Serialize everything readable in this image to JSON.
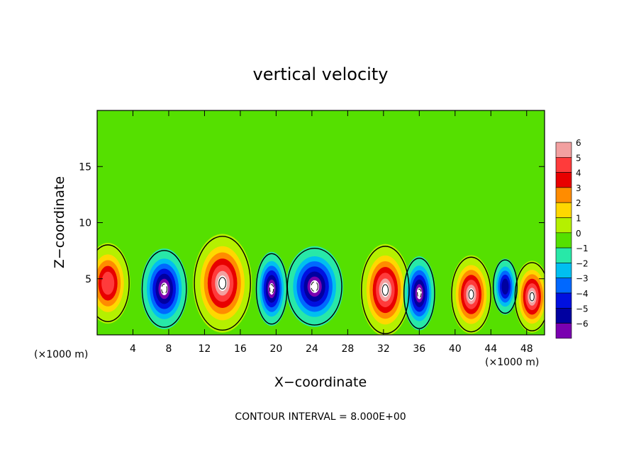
{
  "chart_data": {
    "type": "heatmap",
    "title": "vertical velocity",
    "xlabel": "X−coordinate",
    "ylabel": "Z−coordinate",
    "x_unit": "(×1000 m)",
    "xlim": [
      0,
      50
    ],
    "ylim": [
      0,
      20
    ],
    "x_ticks": [
      4,
      8,
      12,
      16,
      20,
      24,
      28,
      32,
      36,
      40,
      44,
      48
    ],
    "y_ticks": [
      5,
      10,
      15
    ],
    "colorbar": {
      "levels": [
        6,
        5,
        4,
        3,
        2,
        1,
        0,
        -1,
        -2,
        -3,
        -4,
        -5,
        -6
      ],
      "level_labels": [
        "6",
        "5",
        "4",
        "3",
        "2",
        "1",
        "0",
        "−1",
        "−2",
        "−3",
        "−4",
        "−5",
        "−6"
      ],
      "colors": [
        "#f2a0a0",
        "#ff3b3b",
        "#e80000",
        "#ff8c00",
        "#ffd800",
        "#b5f000",
        "#55e000",
        "#28e8a8",
        "#00bff0",
        "#0068ff",
        "#0010e0",
        "#0000a0",
        "#7a00b0"
      ]
    },
    "background_color": "#55e000",
    "features": [
      {
        "kind": "updraft",
        "x": 1.2,
        "z": 4.6,
        "rx": 2.5,
        "rz": 3.6,
        "peak": 5
      },
      {
        "kind": "updraft",
        "x": 14.0,
        "z": 4.6,
        "rx": 3.3,
        "rz": 4.4,
        "peak": 9
      },
      {
        "kind": "updraft",
        "x": 32.2,
        "z": 4.0,
        "rx": 2.8,
        "rz": 4.1,
        "peak": 8
      },
      {
        "kind": "updraft",
        "x": 41.8,
        "z": 3.6,
        "rx": 2.3,
        "rz": 3.5,
        "peak": 7
      },
      {
        "kind": "updraft",
        "x": 48.6,
        "z": 3.4,
        "rx": 2.0,
        "rz": 3.2,
        "peak": 7
      },
      {
        "kind": "downdraft",
        "x": 7.5,
        "z": 4.1,
        "rx": 2.6,
        "rz": 3.6,
        "peak": -9
      },
      {
        "kind": "downdraft",
        "x": 19.5,
        "z": 4.1,
        "rx": 1.8,
        "rz": 3.3,
        "peak": -8
      },
      {
        "kind": "downdraft",
        "x": 24.3,
        "z": 4.3,
        "rx": 3.2,
        "rz": 3.6,
        "peak": -8
      },
      {
        "kind": "downdraft",
        "x": 36.0,
        "z": 3.7,
        "rx": 1.8,
        "rz": 3.3,
        "peak": -8
      },
      {
        "kind": "downdraft",
        "x": 45.6,
        "z": 4.3,
        "rx": 1.4,
        "rz": 2.5,
        "peak": -5
      }
    ],
    "contour_interval_text": "CONTOUR INTERVAL = 8.000E+00"
  }
}
